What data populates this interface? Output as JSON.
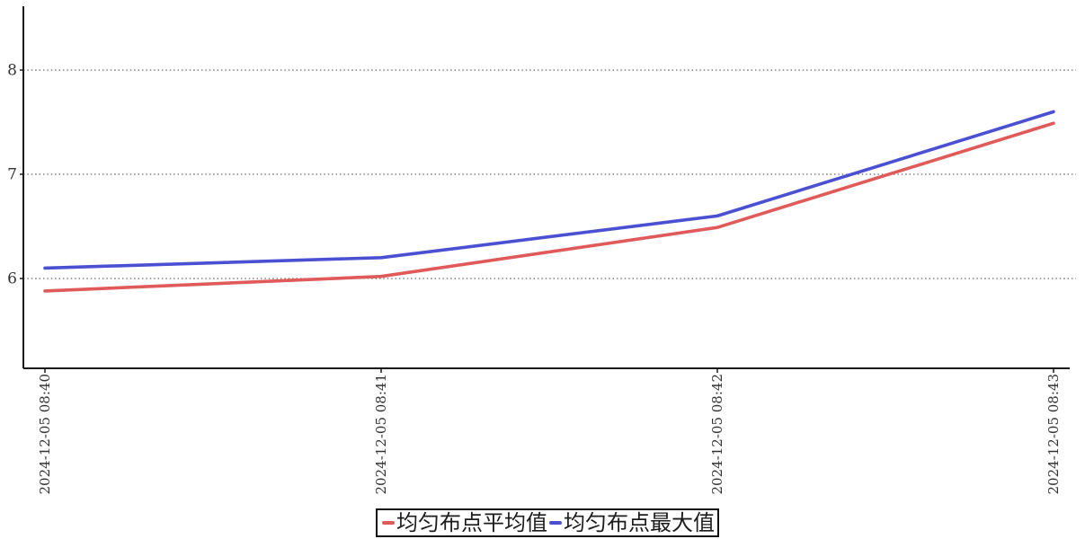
{
  "chart_data": {
    "type": "line",
    "title": "",
    "xlabel": "",
    "ylabel": "",
    "categories": [
      "2024-12-05 08:40",
      "2024-12-05 08:41",
      "2024-12-05 08:42",
      "2024-12-05 08:43"
    ],
    "series": [
      {
        "name": "均匀布点平均值",
        "color": "#e15a5a",
        "values": [
          5.88,
          6.02,
          6.49,
          7.49
        ]
      },
      {
        "name": "均匀布点最大值",
        "color": "#4b50d2",
        "values": [
          6.1,
          6.2,
          6.6,
          7.6
        ]
      }
    ],
    "y_ticks": [
      6,
      7,
      8
    ],
    "ylim": [
      5.14,
      8.61
    ],
    "grid": "horizontal-dotted",
    "legend_position": "bottom-center",
    "x_labels_rotated_degrees": 90,
    "axis_color": "#1a1a1a",
    "grid_color": "#606060",
    "tick_label_color": "#333333"
  }
}
